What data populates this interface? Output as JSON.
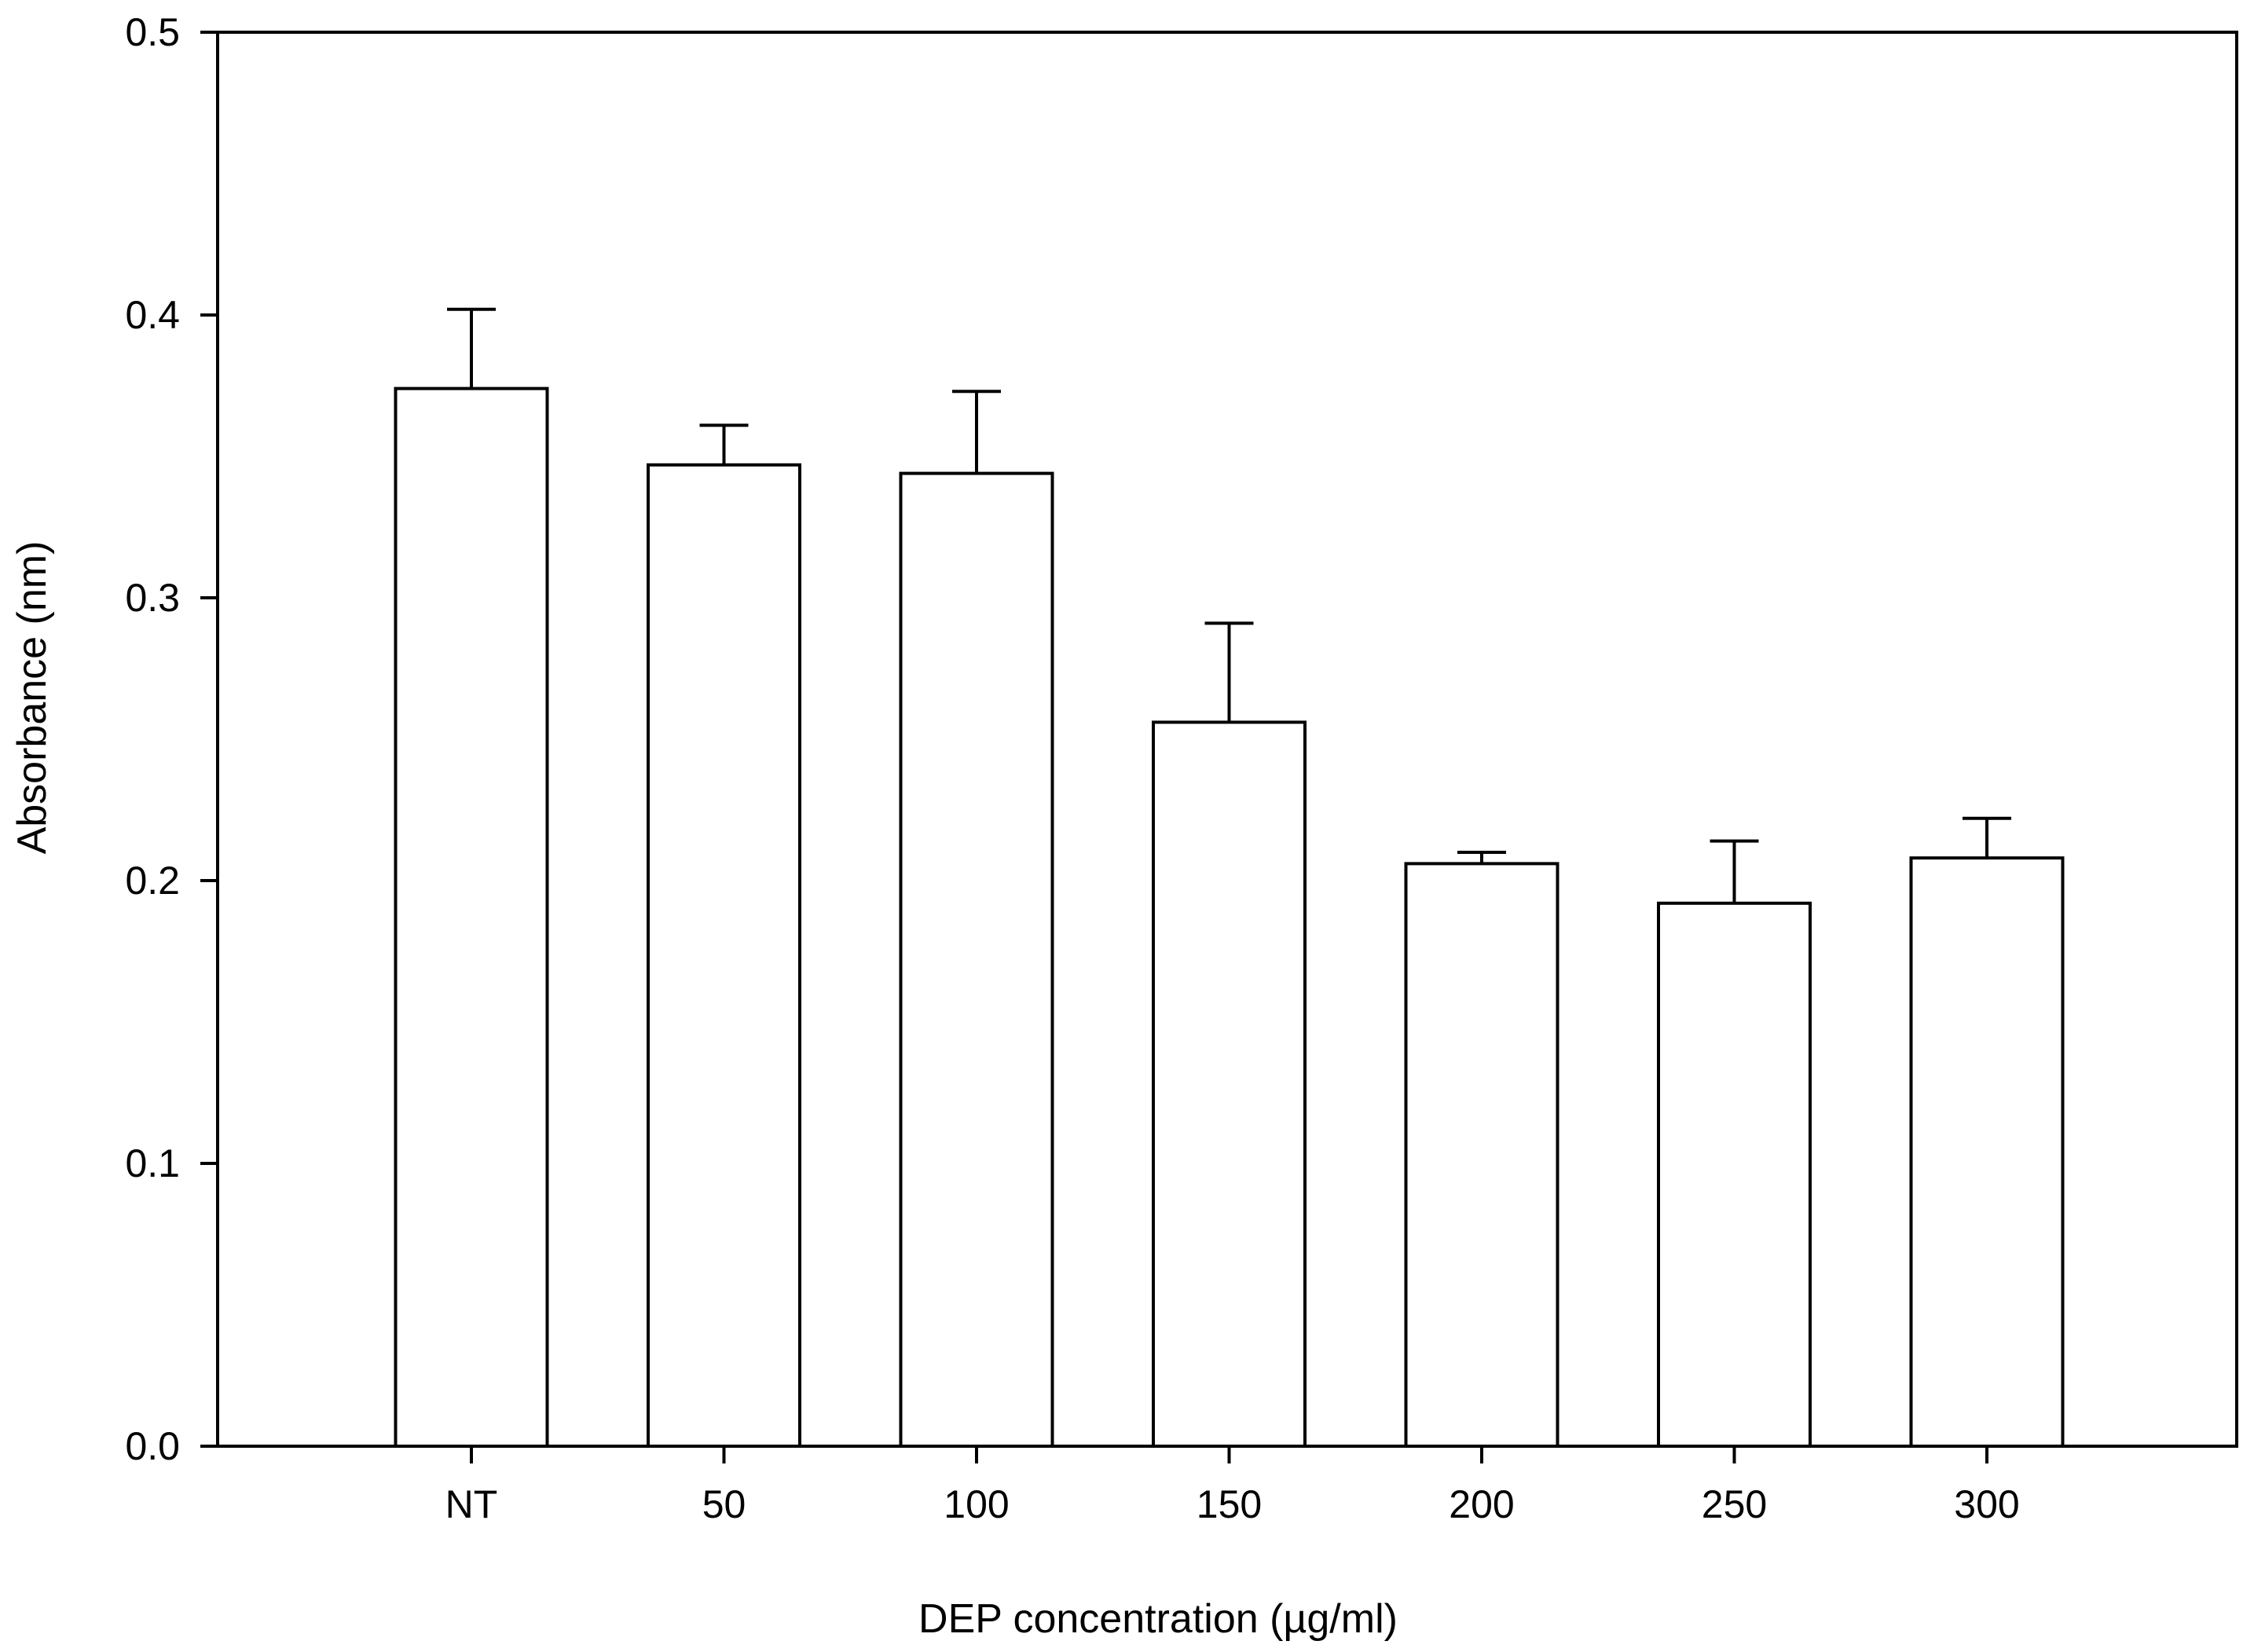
{
  "chart_data": {
    "type": "bar",
    "title": "",
    "xlabel": "DEP concentration (µg/ml)",
    "ylabel": "Absorbance (nm)",
    "categories": [
      "NT",
      "50",
      "100",
      "150",
      "200",
      "250",
      "300"
    ],
    "values": [
      0.374,
      0.347,
      0.344,
      0.256,
      0.206,
      0.192,
      0.208
    ],
    "error_upper": [
      0.028,
      0.014,
      0.029,
      0.035,
      0.004,
      0.022,
      0.014
    ],
    "ylim": [
      0.0,
      0.5
    ],
    "yticks": [
      "0.0",
      "0.1",
      "0.2",
      "0.3",
      "0.4",
      "0.5"
    ],
    "grid": false,
    "legend": "none",
    "colors": {
      "bar_fill": "#ffffff",
      "bar_stroke": "#000000",
      "axis": "#000000"
    }
  }
}
